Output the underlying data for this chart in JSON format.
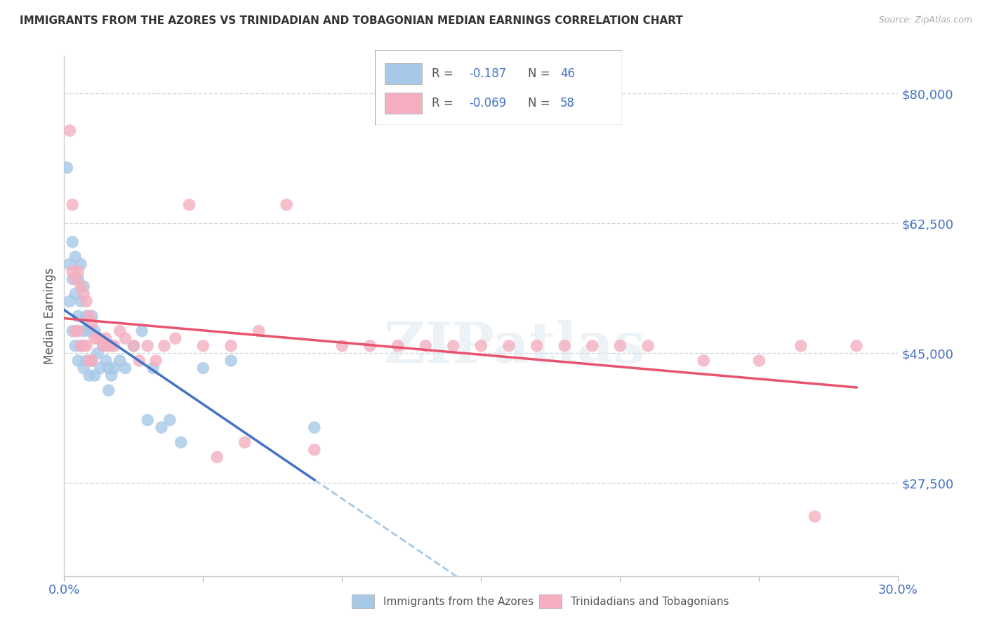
{
  "title": "IMMIGRANTS FROM THE AZORES VS TRINIDADIAN AND TOBAGONIAN MEDIAN EARNINGS CORRELATION CHART",
  "source": "Source: ZipAtlas.com",
  "ylabel": "Median Earnings",
  "ytick_labels": [
    "$27,500",
    "$45,000",
    "$62,500",
    "$80,000"
  ],
  "ytick_values": [
    27500,
    45000,
    62500,
    80000
  ],
  "ymin": 15000,
  "ymax": 85000,
  "xmin": 0.0,
  "xmax": 0.3,
  "legend_blue_r": "-0.187",
  "legend_blue_n": "46",
  "legend_pink_r": "-0.069",
  "legend_pink_n": "58",
  "legend_label_blue": "Immigrants from the Azores",
  "legend_label_pink": "Trinidadians and Tobagonians",
  "blue_color": "#a8c8e8",
  "pink_color": "#f4afc0",
  "blue_line_color": "#4472c4",
  "pink_line_color": "#e8536e",
  "blue_dashed_color": "#a8c8e8",
  "watermark": "ZIPatlas",
  "grid_color": "#d0d8e0",
  "spine_color": "#cccccc",
  "blue_x": [
    0.001,
    0.002,
    0.002,
    0.003,
    0.003,
    0.003,
    0.004,
    0.004,
    0.004,
    0.005,
    0.005,
    0.005,
    0.006,
    0.006,
    0.006,
    0.007,
    0.007,
    0.007,
    0.008,
    0.008,
    0.009,
    0.009,
    0.01,
    0.01,
    0.011,
    0.011,
    0.012,
    0.013,
    0.014,
    0.015,
    0.016,
    0.016,
    0.017,
    0.018,
    0.02,
    0.022,
    0.025,
    0.028,
    0.03,
    0.032,
    0.035,
    0.038,
    0.042,
    0.05,
    0.06,
    0.09
  ],
  "blue_y": [
    70000,
    57000,
    52000,
    60000,
    55000,
    48000,
    58000,
    53000,
    46000,
    55000,
    50000,
    44000,
    57000,
    52000,
    46000,
    54000,
    48000,
    43000,
    50000,
    44000,
    48000,
    42000,
    50000,
    44000,
    48000,
    42000,
    45000,
    43000,
    46000,
    44000,
    43000,
    40000,
    42000,
    43000,
    44000,
    43000,
    46000,
    48000,
    36000,
    43000,
    35000,
    36000,
    33000,
    43000,
    44000,
    35000
  ],
  "pink_x": [
    0.002,
    0.003,
    0.003,
    0.004,
    0.004,
    0.005,
    0.005,
    0.006,
    0.006,
    0.007,
    0.007,
    0.008,
    0.008,
    0.009,
    0.009,
    0.01,
    0.01,
    0.011,
    0.012,
    0.013,
    0.014,
    0.015,
    0.016,
    0.017,
    0.018,
    0.02,
    0.022,
    0.025,
    0.027,
    0.03,
    0.033,
    0.036,
    0.04,
    0.045,
    0.05,
    0.055,
    0.06,
    0.065,
    0.07,
    0.08,
    0.09,
    0.1,
    0.11,
    0.12,
    0.13,
    0.14,
    0.15,
    0.16,
    0.17,
    0.18,
    0.19,
    0.2,
    0.21,
    0.23,
    0.25,
    0.265,
    0.27,
    0.285
  ],
  "pink_y": [
    75000,
    65000,
    56000,
    55000,
    48000,
    56000,
    48000,
    54000,
    46000,
    53000,
    46000,
    52000,
    46000,
    50000,
    44000,
    49000,
    44000,
    47000,
    47000,
    47000,
    46000,
    47000,
    46000,
    46000,
    46000,
    48000,
    47000,
    46000,
    44000,
    46000,
    44000,
    46000,
    47000,
    65000,
    46000,
    31000,
    46000,
    33000,
    48000,
    65000,
    32000,
    46000,
    46000,
    46000,
    46000,
    46000,
    46000,
    46000,
    46000,
    46000,
    46000,
    46000,
    46000,
    44000,
    44000,
    46000,
    23000,
    46000
  ]
}
